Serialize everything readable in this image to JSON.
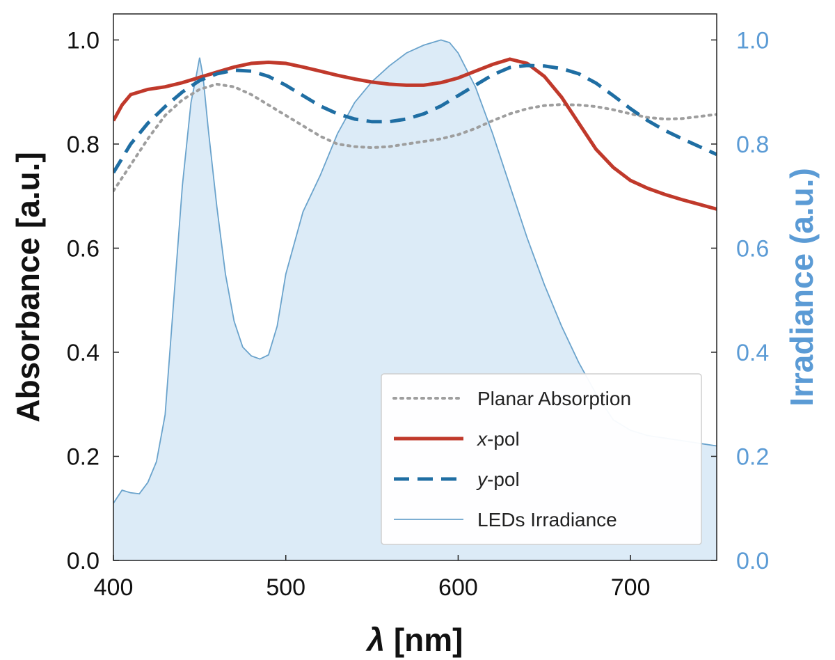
{
  "chart_data": {
    "type": "line",
    "xlabel": "λ [nm]",
    "ylabel": "Absorbance [a.u.]",
    "ylabel_right": "Irradiance (a.u.)",
    "xlim": [
      400,
      750
    ],
    "ylim": [
      0,
      1.05
    ],
    "ylim_right": [
      0,
      1.05
    ],
    "xticks": [
      "400",
      "500",
      "600",
      "700"
    ],
    "yticks": [
      "0.0",
      "0.2",
      "0.4",
      "0.6",
      "0.8",
      "1.0"
    ],
    "yticks_right": [
      "0.0",
      "0.2",
      "0.4",
      "0.6",
      "0.8",
      "1.0"
    ],
    "grid": false,
    "legend_position": "bottom-right",
    "colors": {
      "planar": "#9e9e9e",
      "xpol": "#c0392b",
      "ypol": "#1f6ea3",
      "led_line": "#6aa3cc",
      "led_fill": "#dcebf7",
      "right_axis": "#5b9bd5"
    },
    "series": [
      {
        "name": "Planar Absorption",
        "axis": "left",
        "style": "dotted",
        "x": [
          400,
          410,
          420,
          430,
          440,
          450,
          460,
          470,
          480,
          490,
          500,
          510,
          520,
          530,
          540,
          550,
          560,
          570,
          580,
          590,
          600,
          610,
          620,
          630,
          640,
          650,
          660,
          670,
          680,
          690,
          700,
          710,
          720,
          730,
          740,
          750
        ],
        "y": [
          0.71,
          0.76,
          0.81,
          0.855,
          0.885,
          0.905,
          0.915,
          0.91,
          0.895,
          0.875,
          0.855,
          0.835,
          0.815,
          0.8,
          0.795,
          0.793,
          0.795,
          0.8,
          0.805,
          0.81,
          0.818,
          0.83,
          0.845,
          0.858,
          0.868,
          0.874,
          0.876,
          0.875,
          0.872,
          0.866,
          0.858,
          0.851,
          0.848,
          0.849,
          0.853,
          0.857
        ]
      },
      {
        "name": "x-pol",
        "name_italic": "x",
        "name_rest": "-pol",
        "axis": "left",
        "style": "solid",
        "x": [
          400,
          405,
          410,
          420,
          430,
          440,
          450,
          460,
          470,
          480,
          490,
          500,
          510,
          520,
          530,
          540,
          550,
          560,
          570,
          580,
          590,
          600,
          610,
          620,
          630,
          640,
          650,
          660,
          670,
          680,
          690,
          700,
          710,
          720,
          730,
          740,
          750
        ],
        "y": [
          0.845,
          0.875,
          0.895,
          0.905,
          0.91,
          0.918,
          0.928,
          0.938,
          0.948,
          0.955,
          0.957,
          0.955,
          0.948,
          0.94,
          0.932,
          0.925,
          0.919,
          0.915,
          0.913,
          0.913,
          0.918,
          0.927,
          0.94,
          0.953,
          0.963,
          0.955,
          0.93,
          0.89,
          0.84,
          0.79,
          0.755,
          0.73,
          0.715,
          0.703,
          0.693,
          0.684,
          0.675
        ]
      },
      {
        "name": "y-pol",
        "name_italic": "y",
        "name_rest": "-pol",
        "axis": "left",
        "style": "dashed",
        "x": [
          400,
          410,
          420,
          430,
          440,
          450,
          460,
          470,
          480,
          490,
          500,
          510,
          520,
          530,
          540,
          550,
          560,
          570,
          580,
          590,
          600,
          610,
          620,
          630,
          640,
          650,
          660,
          670,
          680,
          690,
          700,
          710,
          720,
          730,
          740,
          750
        ],
        "y": [
          0.745,
          0.8,
          0.84,
          0.872,
          0.9,
          0.922,
          0.935,
          0.942,
          0.94,
          0.93,
          0.913,
          0.893,
          0.873,
          0.858,
          0.848,
          0.843,
          0.843,
          0.848,
          0.858,
          0.873,
          0.893,
          0.913,
          0.933,
          0.947,
          0.951,
          0.95,
          0.945,
          0.935,
          0.917,
          0.893,
          0.868,
          0.845,
          0.826,
          0.81,
          0.795,
          0.78
        ]
      },
      {
        "name": "LEDs Irradiance",
        "axis": "right",
        "style": "filled",
        "x": [
          400,
          405,
          410,
          415,
          420,
          425,
          430,
          435,
          440,
          445,
          448,
          450,
          452,
          455,
          460,
          465,
          470,
          475,
          480,
          485,
          490,
          495,
          500,
          510,
          520,
          530,
          540,
          550,
          560,
          570,
          580,
          585,
          590,
          595,
          600,
          610,
          620,
          630,
          640,
          650,
          660,
          670,
          680,
          690,
          700,
          710,
          720,
          730,
          740,
          750
        ],
        "y": [
          0.11,
          0.135,
          0.13,
          0.128,
          0.15,
          0.19,
          0.28,
          0.5,
          0.72,
          0.88,
          0.93,
          0.966,
          0.93,
          0.83,
          0.68,
          0.55,
          0.46,
          0.41,
          0.393,
          0.387,
          0.395,
          0.45,
          0.55,
          0.67,
          0.74,
          0.82,
          0.88,
          0.92,
          0.95,
          0.975,
          0.99,
          0.995,
          1.0,
          0.995,
          0.975,
          0.91,
          0.82,
          0.72,
          0.62,
          0.53,
          0.45,
          0.38,
          0.32,
          0.27,
          0.25,
          0.24,
          0.235,
          0.23,
          0.225,
          0.22
        ]
      }
    ]
  }
}
